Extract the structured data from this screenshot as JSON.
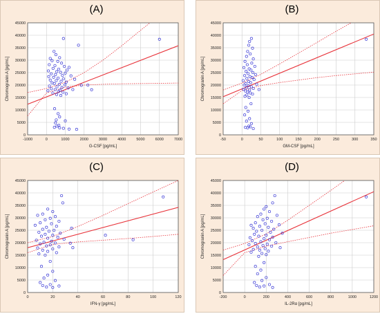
{
  "chart_data": [
    {
      "panel_label": "(A)",
      "type": "scatter",
      "xlabel": "G-CSF [pg/mL]",
      "ylabel": "Chromogranin A [pg/mL]",
      "xlim": [
        -1000,
        7000
      ],
      "ylim": [
        0,
        45000
      ],
      "xticks": [
        -1000,
        0,
        1000,
        2000,
        3000,
        4000,
        5000,
        6000,
        7000
      ],
      "yticks": [
        0,
        5000,
        10000,
        15000,
        20000,
        25000,
        30000,
        35000,
        40000,
        45000
      ],
      "points": [
        [
          900,
          38700
        ],
        [
          6000,
          38400
        ],
        [
          1700,
          36000
        ],
        [
          400,
          33500
        ],
        [
          500,
          32200
        ],
        [
          700,
          31000
        ],
        [
          200,
          30700
        ],
        [
          300,
          29800
        ],
        [
          600,
          29500
        ],
        [
          800,
          28800
        ],
        [
          150,
          28200
        ],
        [
          450,
          27800
        ],
        [
          950,
          27500
        ],
        [
          1200,
          27100
        ],
        [
          350,
          26700
        ],
        [
          650,
          26400
        ],
        [
          1100,
          26000
        ],
        [
          100,
          25700
        ],
        [
          550,
          25400
        ],
        [
          750,
          25100
        ],
        [
          1000,
          24800
        ],
        [
          250,
          24500
        ],
        [
          480,
          24200
        ],
        [
          850,
          23900
        ],
        [
          1300,
          23700
        ],
        [
          120,
          23400
        ],
        [
          380,
          23100
        ],
        [
          620,
          22800
        ],
        [
          900,
          22500
        ],
        [
          1500,
          22300
        ],
        [
          200,
          22000
        ],
        [
          520,
          21800
        ],
        [
          780,
          21500
        ],
        [
          1050,
          21200
        ],
        [
          300,
          20900
        ],
        [
          420,
          20600
        ],
        [
          680,
          20300
        ],
        [
          980,
          20100
        ],
        [
          1850,
          19900
        ],
        [
          2200,
          20000
        ],
        [
          160,
          19600
        ],
        [
          560,
          19300
        ],
        [
          820,
          19000
        ],
        [
          1150,
          18800
        ],
        [
          260,
          18500
        ],
        [
          460,
          18200
        ],
        [
          720,
          17900
        ],
        [
          2400,
          18100
        ],
        [
          1400,
          18200
        ],
        [
          80,
          17700
        ],
        [
          640,
          17400
        ],
        [
          880,
          17100
        ],
        [
          340,
          16800
        ],
        [
          1050,
          16500
        ],
        [
          540,
          16200
        ],
        [
          760,
          15800
        ],
        [
          430,
          10500
        ],
        [
          620,
          8500
        ],
        [
          700,
          7200
        ],
        [
          520,
          6000
        ],
        [
          480,
          4800
        ],
        [
          1000,
          5600
        ],
        [
          660,
          3800
        ],
        [
          900,
          2600
        ],
        [
          1200,
          2300
        ],
        [
          420,
          3000
        ],
        [
          560,
          3500
        ],
        [
          1600,
          2200
        ],
        [
          700,
          2800
        ]
      ],
      "fit_line": [
        [
          -1000,
          12300
        ],
        [
          7000,
          35800
        ]
      ],
      "ci_upper": [
        [
          -1000,
          17000
        ],
        [
          0,
          18600
        ],
        [
          1000,
          21100
        ],
        [
          2000,
          25000
        ],
        [
          3000,
          30000
        ],
        [
          4000,
          35800
        ],
        [
          5000,
          42000
        ],
        [
          5500,
          45000
        ]
      ],
      "ci_lower": [
        [
          -1000,
          7600
        ],
        [
          0,
          16800
        ],
        [
          1000,
          19200
        ],
        [
          2000,
          20000
        ],
        [
          3000,
          20300
        ],
        [
          4000,
          20500
        ],
        [
          5000,
          20600
        ],
        [
          6000,
          20700
        ],
        [
          7000,
          20800
        ]
      ]
    },
    {
      "panel_label": "(B)",
      "type": "scatter",
      "xlabel": "GM-CSF [pg/mL]",
      "ylabel": "Chromogranin A [pg/mL]",
      "xlim": [
        -50,
        350
      ],
      "ylim": [
        0,
        45000
      ],
      "xticks": [
        -50,
        0,
        50,
        100,
        150,
        200,
        250,
        300,
        350
      ],
      "yticks": [
        0,
        5000,
        10000,
        15000,
        20000,
        25000,
        30000,
        35000,
        40000,
        45000
      ],
      "points": [
        [
          25,
          38700
        ],
        [
          330,
          38400
        ],
        [
          20,
          37500
        ],
        [
          18,
          36000
        ],
        [
          28,
          34800
        ],
        [
          15,
          33500
        ],
        [
          22,
          32500
        ],
        [
          12,
          31500
        ],
        [
          30,
          30500
        ],
        [
          8,
          29500
        ],
        [
          26,
          28800
        ],
        [
          14,
          28200
        ],
        [
          34,
          27500
        ],
        [
          5,
          27000
        ],
        [
          19,
          26500
        ],
        [
          24,
          26000
        ],
        [
          11,
          25500
        ],
        [
          29,
          25000
        ],
        [
          16,
          24600
        ],
        [
          36,
          24200
        ],
        [
          7,
          23800
        ],
        [
          21,
          23400
        ],
        [
          27,
          23000
        ],
        [
          13,
          22600
        ],
        [
          32,
          22200
        ],
        [
          3,
          21800
        ],
        [
          18,
          21400
        ],
        [
          23,
          21000
        ],
        [
          10,
          20600
        ],
        [
          39,
          20300
        ],
        [
          6,
          20000
        ],
        [
          17,
          19700
        ],
        [
          25,
          19300
        ],
        [
          12,
          19000
        ],
        [
          30,
          18600
        ],
        [
          4,
          18300
        ],
        [
          20,
          18000
        ],
        [
          45,
          18200
        ],
        [
          9,
          17600
        ],
        [
          15,
          17200
        ],
        [
          22,
          16800
        ],
        [
          28,
          16400
        ],
        [
          13,
          16000
        ],
        [
          8,
          15500
        ],
        [
          19,
          15000
        ],
        [
          24,
          12500
        ],
        [
          10,
          11000
        ],
        [
          16,
          9500
        ],
        [
          7,
          8000
        ],
        [
          20,
          6500
        ],
        [
          12,
          5500
        ],
        [
          25,
          4500
        ],
        [
          18,
          3500
        ],
        [
          9,
          3000
        ],
        [
          30,
          2500
        ],
        [
          15,
          2800
        ],
        [
          22,
          3200
        ]
      ],
      "fit_line": [
        [
          -50,
          15300
        ],
        [
          350,
          40500
        ]
      ],
      "ci_upper": [
        [
          -50,
          18000
        ],
        [
          0,
          20800
        ],
        [
          50,
          24300
        ],
        [
          100,
          28500
        ],
        [
          150,
          32800
        ],
        [
          200,
          37200
        ],
        [
          250,
          41600
        ],
        [
          290,
          45000
        ]
      ],
      "ci_lower": [
        [
          -50,
          12500
        ],
        [
          0,
          17800
        ],
        [
          50,
          19800
        ],
        [
          100,
          21000
        ],
        [
          150,
          22000
        ],
        [
          200,
          23000
        ],
        [
          250,
          23800
        ],
        [
          300,
          24500
        ],
        [
          350,
          25200
        ]
      ]
    },
    {
      "panel_label": "(C)",
      "type": "scatter",
      "xlabel": "IFN-γ [pg/mL]",
      "ylabel": "Chromogranin A [pg/mL]",
      "xlim": [
        0,
        120
      ],
      "ylim": [
        0,
        45000
      ],
      "xticks": [
        0,
        20,
        40,
        60,
        80,
        100,
        120
      ],
      "yticks": [
        0,
        5000,
        10000,
        15000,
        20000,
        25000,
        30000,
        35000,
        40000,
        45000
      ],
      "points": [
        [
          27,
          38900
        ],
        [
          108,
          38400
        ],
        [
          28,
          36000
        ],
        [
          16,
          33500
        ],
        [
          20,
          32500
        ],
        [
          12,
          31500
        ],
        [
          8,
          31000
        ],
        [
          22,
          30500
        ],
        [
          18,
          29800
        ],
        [
          14,
          29200
        ],
        [
          25,
          28600
        ],
        [
          10,
          28000
        ],
        [
          19,
          27600
        ],
        [
          6,
          27000
        ],
        [
          23,
          26600
        ],
        [
          15,
          26200
        ],
        [
          35,
          25800
        ],
        [
          12,
          25400
        ],
        [
          21,
          25000
        ],
        [
          17,
          24600
        ],
        [
          9,
          24200
        ],
        [
          26,
          23800
        ],
        [
          14,
          23400
        ],
        [
          20,
          23000
        ],
        [
          62,
          23000
        ],
        [
          11,
          22600
        ],
        [
          24,
          22200
        ],
        [
          16,
          21800
        ],
        [
          29,
          21400
        ],
        [
          84,
          21200
        ],
        [
          7,
          21000
        ],
        [
          19,
          20600
        ],
        [
          13,
          20200
        ],
        [
          22,
          19900
        ],
        [
          34,
          19800
        ],
        [
          10,
          19500
        ],
        [
          18,
          19100
        ],
        [
          15,
          18700
        ],
        [
          25,
          18300
        ],
        [
          36,
          18000
        ],
        [
          8,
          17900
        ],
        [
          20,
          17500
        ],
        [
          12,
          17000
        ],
        [
          16,
          16500
        ],
        [
          23,
          16000
        ],
        [
          9,
          15500
        ],
        [
          14,
          15000
        ],
        [
          18,
          12500
        ],
        [
          11,
          10500
        ],
        [
          20,
          8500
        ],
        [
          16,
          7000
        ],
        [
          13,
          5800
        ],
        [
          22,
          4800
        ],
        [
          10,
          4000
        ],
        [
          18,
          3200
        ],
        [
          25,
          2600
        ],
        [
          15,
          2200
        ],
        [
          20,
          2000
        ],
        [
          12,
          2800
        ]
      ],
      "fit_line": [
        [
          0,
          18000
        ],
        [
          120,
          34200
        ]
      ],
      "ci_upper": [
        [
          0,
          20000
        ],
        [
          20,
          22500
        ],
        [
          40,
          26500
        ],
        [
          60,
          31000
        ],
        [
          80,
          35700
        ],
        [
          100,
          40400
        ],
        [
          120,
          45000
        ]
      ],
      "ci_lower": [
        [
          0,
          16000
        ],
        [
          20,
          19300
        ],
        [
          40,
          20300
        ],
        [
          60,
          21000
        ],
        [
          80,
          21700
        ],
        [
          100,
          22500
        ],
        [
          120,
          23400
        ]
      ]
    },
    {
      "panel_label": "(D)",
      "type": "scatter",
      "xlabel": "IL-2Rα [pg/mL]",
      "ylabel": "Chromogranin A [pg/mL]",
      "xlim": [
        -200,
        1200
      ],
      "ylim": [
        0,
        45000
      ],
      "xticks": [
        -200,
        0,
        200,
        400,
        600,
        800,
        1000,
        1200
      ],
      "yticks": [
        0,
        5000,
        10000,
        15000,
        20000,
        25000,
        30000,
        35000,
        40000,
        45000
      ],
      "points": [
        [
          280,
          38900
        ],
        [
          1130,
          38400
        ],
        [
          260,
          36000
        ],
        [
          200,
          34500
        ],
        [
          180,
          33500
        ],
        [
          230,
          32500
        ],
        [
          150,
          31500
        ],
        [
          300,
          31000
        ],
        [
          120,
          30500
        ],
        [
          210,
          29800
        ],
        [
          170,
          29200
        ],
        [
          250,
          28600
        ],
        [
          100,
          28000
        ],
        [
          190,
          27600
        ],
        [
          320,
          27200
        ],
        [
          60,
          27000
        ],
        [
          140,
          26600
        ],
        [
          220,
          26200
        ],
        [
          80,
          25800
        ],
        [
          270,
          25400
        ],
        [
          160,
          25000
        ],
        [
          110,
          24600
        ],
        [
          240,
          24200
        ],
        [
          350,
          23800
        ],
        [
          90,
          23400
        ],
        [
          200,
          23000
        ],
        [
          130,
          22600
        ],
        [
          260,
          22200
        ],
        [
          50,
          22000
        ],
        [
          180,
          21600
        ],
        [
          230,
          21200
        ],
        [
          70,
          20800
        ],
        [
          150,
          20400
        ],
        [
          290,
          20000
        ],
        [
          100,
          19700
        ],
        [
          210,
          19400
        ],
        [
          40,
          19200
        ],
        [
          170,
          18900
        ],
        [
          250,
          18600
        ],
        [
          120,
          18300
        ],
        [
          330,
          18000
        ],
        [
          190,
          17600
        ],
        [
          80,
          17300
        ],
        [
          140,
          17000
        ],
        [
          220,
          16600
        ],
        [
          60,
          16200
        ],
        [
          160,
          15700
        ],
        [
          200,
          15200
        ],
        [
          130,
          14500
        ],
        [
          180,
          12000
        ],
        [
          100,
          10500
        ],
        [
          150,
          9000
        ],
        [
          120,
          7500
        ],
        [
          200,
          6000
        ],
        [
          160,
          4800
        ],
        [
          90,
          4000
        ],
        [
          230,
          3200
        ],
        [
          180,
          2600
        ],
        [
          140,
          2200
        ],
        [
          260,
          2000
        ],
        [
          110,
          2800
        ]
      ],
      "fit_line": [
        [
          -200,
          13200
        ],
        [
          1200,
          40500
        ]
      ],
      "ci_upper": [
        [
          -200,
          17000
        ],
        [
          0,
          19700
        ],
        [
          200,
          23500
        ],
        [
          400,
          29000
        ],
        [
          600,
          35000
        ],
        [
          800,
          41000
        ],
        [
          930,
          45000
        ]
      ],
      "ci_lower": [
        [
          -200,
          6800
        ],
        [
          0,
          16000
        ],
        [
          200,
          18600
        ],
        [
          400,
          20400
        ],
        [
          600,
          22100
        ],
        [
          800,
          23800
        ],
        [
          1000,
          25300
        ],
        [
          1200,
          26800
        ]
      ]
    }
  ],
  "colors": {
    "point": "#3b3bd6",
    "fit_line": "#e8333a",
    "ci_line": "#e8333a",
    "grid": "#cccccc",
    "frame": "#555555",
    "panel_bg": "#ffffff",
    "outer_bg": "#fbebdc"
  }
}
